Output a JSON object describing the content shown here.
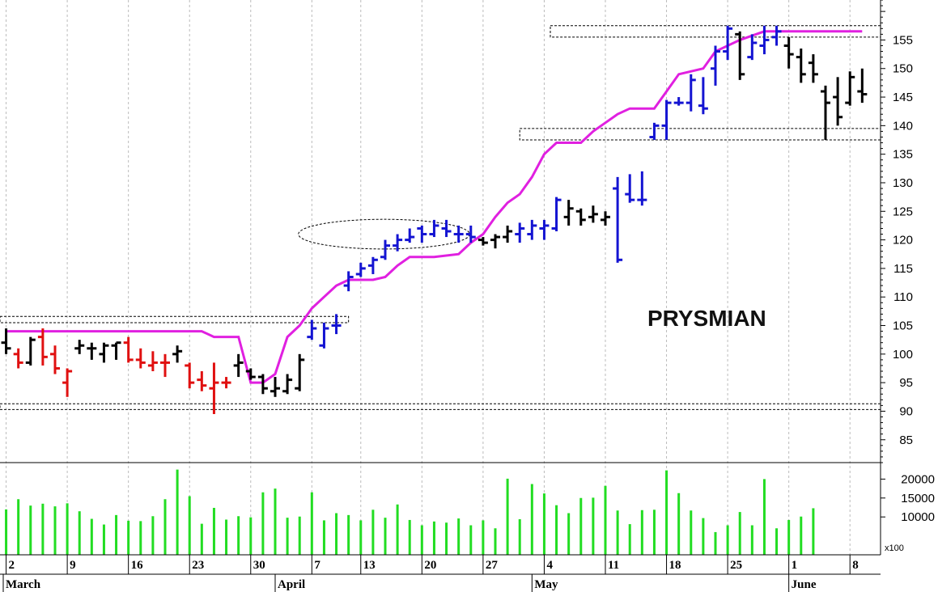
{
  "chart_data": {
    "type": "ohlc",
    "title": "PRYSMIAN",
    "price_axis": {
      "ticks": [
        85,
        90,
        95,
        100,
        105,
        110,
        115,
        120,
        125,
        130,
        135,
        140,
        145,
        150,
        155
      ],
      "ylim": [
        81,
        162
      ]
    },
    "volume_axis": {
      "ticks": [
        10000,
        15000,
        20000
      ],
      "tick_labels": [
        "10000",
        "15000",
        "20000"
      ],
      "unit_label": "x100",
      "ylim": [
        0,
        23500
      ]
    },
    "dates": {
      "day_labels": [
        {
          "text": "2",
          "x": 0
        },
        {
          "text": "9",
          "x": 5
        },
        {
          "text": "16",
          "x": 10
        },
        {
          "text": "23",
          "x": 15
        },
        {
          "text": "30",
          "x": 20
        },
        {
          "text": "7",
          "x": 25
        },
        {
          "text": "13",
          "x": 29
        },
        {
          "text": "20",
          "x": 34
        },
        {
          "text": "27",
          "x": 39
        },
        {
          "text": "4",
          "x": 44
        },
        {
          "text": "11",
          "x": 49
        },
        {
          "text": "18",
          "x": 54
        },
        {
          "text": "25",
          "x": 59
        },
        {
          "text": "1",
          "x": 64
        },
        {
          "text": "8",
          "x": 69
        }
      ],
      "month_labels": [
        {
          "text": "March",
          "x": 0
        },
        {
          "text": "April",
          "x": 22
        },
        {
          "text": "May",
          "x": 43
        },
        {
          "text": "June",
          "x": 64
        }
      ],
      "x_range": [
        -0.5,
        71.5
      ]
    },
    "colors": {
      "red": "#e01010",
      "black": "#000000",
      "blue": "#1414d2",
      "trend": "#e020e0",
      "volume": "#22dd22",
      "grid": "#bbbbbb"
    },
    "bars": [
      {
        "x": 0,
        "o": 102,
        "h": 104.5,
        "l": 100,
        "c": 101,
        "color": "black"
      },
      {
        "x": 1,
        "o": 100,
        "h": 101,
        "l": 97.5,
        "c": 98.5,
        "color": "red"
      },
      {
        "x": 2,
        "o": 98.5,
        "h": 103,
        "l": 98,
        "c": 102.5,
        "color": "black"
      },
      {
        "x": 3,
        "o": 103,
        "h": 104.5,
        "l": 98,
        "c": 99.5,
        "color": "red"
      },
      {
        "x": 4,
        "o": 100,
        "h": 101.5,
        "l": 96.5,
        "c": 97.5,
        "color": "red"
      },
      {
        "x": 5,
        "o": 95,
        "h": 97.5,
        "l": 92.5,
        "c": 97,
        "color": "red"
      },
      {
        "x": 6,
        "o": 101,
        "h": 102.5,
        "l": 100,
        "c": 101.5,
        "color": "black"
      },
      {
        "x": 7,
        "o": 101,
        "h": 102,
        "l": 99,
        "c": 101,
        "color": "black"
      },
      {
        "x": 8,
        "o": 100,
        "h": 102,
        "l": 98.5,
        "c": 101.5,
        "color": "black"
      },
      {
        "x": 9,
        "o": 101.5,
        "h": 102,
        "l": 99,
        "c": 102,
        "color": "black"
      },
      {
        "x": 10,
        "o": 102,
        "h": 103,
        "l": 98.5,
        "c": 99,
        "color": "red"
      },
      {
        "x": 11,
        "o": 99,
        "h": 101,
        "l": 97.5,
        "c": 98.5,
        "color": "red"
      },
      {
        "x": 12,
        "o": 98,
        "h": 100.5,
        "l": 97,
        "c": 98.5,
        "color": "red"
      },
      {
        "x": 13,
        "o": 98.5,
        "h": 100,
        "l": 96,
        "c": 98.5,
        "color": "red"
      },
      {
        "x": 14,
        "o": 100,
        "h": 101.5,
        "l": 98.5,
        "c": 100.5,
        "color": "black"
      },
      {
        "x": 15,
        "o": 98,
        "h": 98.5,
        "l": 94,
        "c": 95,
        "color": "red"
      },
      {
        "x": 16,
        "o": 95.5,
        "h": 97,
        "l": 93.5,
        "c": 94.5,
        "color": "red"
      },
      {
        "x": 17,
        "o": 94,
        "h": 98.5,
        "l": 89.5,
        "c": 95,
        "color": "red"
      },
      {
        "x": 18,
        "o": 95,
        "h": 96,
        "l": 94,
        "c": 95,
        "color": "red"
      },
      {
        "x": 19,
        "o": 98,
        "h": 100,
        "l": 96,
        "c": 98.5,
        "color": "black"
      },
      {
        "x": 20,
        "o": 97,
        "h": 97.5,
        "l": 95.5,
        "c": 96,
        "color": "black"
      },
      {
        "x": 21,
        "o": 96,
        "h": 96.5,
        "l": 93,
        "c": 94,
        "color": "black"
      },
      {
        "x": 22,
        "o": 93.5,
        "h": 96,
        "l": 92.5,
        "c": 94,
        "color": "black"
      },
      {
        "x": 23,
        "o": 93.5,
        "h": 96.5,
        "l": 93,
        "c": 95.5,
        "color": "black"
      },
      {
        "x": 24,
        "o": 94,
        "h": 100,
        "l": 93.5,
        "c": 99,
        "color": "black"
      },
      {
        "x": 25,
        "o": 103,
        "h": 106,
        "l": 102.5,
        "c": 104.5,
        "color": "blue"
      },
      {
        "x": 26,
        "o": 101.5,
        "h": 105.5,
        "l": 101,
        "c": 104.5,
        "color": "blue"
      },
      {
        "x": 27,
        "o": 105,
        "h": 107,
        "l": 103.5,
        "c": 105,
        "color": "blue"
      },
      {
        "x": 28,
        "o": 112,
        "h": 114.5,
        "l": 111,
        "c": 113.5,
        "color": "blue"
      },
      {
        "x": 29,
        "o": 114,
        "h": 116,
        "l": 113.5,
        "c": 115,
        "color": "blue"
      },
      {
        "x": 30,
        "o": 115.5,
        "h": 117,
        "l": 114,
        "c": 116.5,
        "color": "blue"
      },
      {
        "x": 31,
        "o": 117,
        "h": 120,
        "l": 116.5,
        "c": 119,
        "color": "blue"
      },
      {
        "x": 32,
        "o": 119,
        "h": 121,
        "l": 118,
        "c": 120,
        "color": "blue"
      },
      {
        "x": 33,
        "o": 120,
        "h": 122,
        "l": 119.5,
        "c": 120.5,
        "color": "blue"
      },
      {
        "x": 34,
        "o": 122,
        "h": 122.5,
        "l": 119.5,
        "c": 121,
        "color": "blue"
      },
      {
        "x": 35,
        "o": 121,
        "h": 123.5,
        "l": 120.5,
        "c": 122.5,
        "color": "blue"
      },
      {
        "x": 36,
        "o": 122,
        "h": 123.5,
        "l": 120.5,
        "c": 121.5,
        "color": "blue"
      },
      {
        "x": 37,
        "o": 121,
        "h": 122.5,
        "l": 119.5,
        "c": 121,
        "color": "blue"
      },
      {
        "x": 38,
        "o": 121,
        "h": 122.5,
        "l": 119.5,
        "c": 120.5,
        "color": "blue"
      },
      {
        "x": 39,
        "o": 120,
        "h": 120.5,
        "l": 119,
        "c": 119.5,
        "color": "black"
      },
      {
        "x": 40,
        "o": 120,
        "h": 121,
        "l": 118.5,
        "c": 120.5,
        "color": "black"
      },
      {
        "x": 41,
        "o": 120.5,
        "h": 122.5,
        "l": 119.5,
        "c": 121.5,
        "color": "black"
      },
      {
        "x": 42,
        "o": 121,
        "h": 123,
        "l": 119.5,
        "c": 122,
        "color": "blue"
      },
      {
        "x": 43,
        "o": 121,
        "h": 123.5,
        "l": 120,
        "c": 122.5,
        "color": "blue"
      },
      {
        "x": 44,
        "o": 122,
        "h": 123.5,
        "l": 120,
        "c": 122.5,
        "color": "blue"
      },
      {
        "x": 45,
        "o": 122,
        "h": 127.5,
        "l": 121.5,
        "c": 127,
        "color": "blue"
      },
      {
        "x": 46,
        "o": 124,
        "h": 127,
        "l": 122.5,
        "c": 125.5,
        "color": "black"
      },
      {
        "x": 47,
        "o": 125,
        "h": 125.5,
        "l": 122.5,
        "c": 123.5,
        "color": "black"
      },
      {
        "x": 48,
        "o": 124,
        "h": 126,
        "l": 123,
        "c": 124.5,
        "color": "black"
      },
      {
        "x": 49,
        "o": 123.5,
        "h": 125,
        "l": 122.5,
        "c": 124,
        "color": "black"
      },
      {
        "x": 50,
        "o": 129,
        "h": 131,
        "l": 116,
        "c": 116.5,
        "color": "blue"
      },
      {
        "x": 51,
        "o": 128,
        "h": 131.5,
        "l": 126.5,
        "c": 127,
        "color": "blue"
      },
      {
        "x": 52,
        "o": 127,
        "h": 132,
        "l": 126,
        "c": 127,
        "color": "blue"
      },
      {
        "x": 53,
        "o": 138,
        "h": 140.5,
        "l": 137.5,
        "c": 140,
        "color": "blue"
      },
      {
        "x": 54,
        "o": 140,
        "h": 144.5,
        "l": 137.5,
        "c": 144,
        "color": "blue"
      },
      {
        "x": 55,
        "o": 144,
        "h": 145,
        "l": 143.5,
        "c": 144,
        "color": "blue"
      },
      {
        "x": 56,
        "o": 144,
        "h": 149,
        "l": 142.5,
        "c": 148,
        "color": "blue"
      },
      {
        "x": 57,
        "o": 143.5,
        "h": 148.5,
        "l": 142,
        "c": 143,
        "color": "blue"
      },
      {
        "x": 58,
        "o": 150,
        "h": 154,
        "l": 147,
        "c": 153,
        "color": "blue"
      },
      {
        "x": 59,
        "o": 153,
        "h": 157.5,
        "l": 151.5,
        "c": 157,
        "color": "blue"
      },
      {
        "x": 60,
        "o": 156,
        "h": 156.5,
        "l": 148,
        "c": 149,
        "color": "black"
      },
      {
        "x": 61,
        "o": 152,
        "h": 156,
        "l": 151.5,
        "c": 154.5,
        "color": "blue"
      },
      {
        "x": 62,
        "o": 154,
        "h": 157.5,
        "l": 152.5,
        "c": 155,
        "color": "blue"
      },
      {
        "x": 63,
        "o": 155.5,
        "h": 157.5,
        "l": 154,
        "c": 156.5,
        "color": "blue"
      },
      {
        "x": 64,
        "o": 154,
        "h": 155.5,
        "l": 150,
        "c": 152.5,
        "color": "black"
      },
      {
        "x": 65,
        "o": 152,
        "h": 153.5,
        "l": 147.5,
        "c": 149,
        "color": "black"
      },
      {
        "x": 66,
        "o": 151,
        "h": 152.5,
        "l": 147.5,
        "c": 149,
        "color": "black"
      },
      {
        "x": 67,
        "o": 146,
        "h": 147,
        "l": 137.5,
        "c": 144,
        "color": "black"
      },
      {
        "x": 68,
        "o": 145,
        "h": 148.5,
        "l": 140,
        "c": 141.5,
        "color": "black"
      },
      {
        "x": 69,
        "o": 144,
        "h": 149.5,
        "l": 143.5,
        "c": 148.5,
        "color": "black"
      },
      {
        "x": 70,
        "o": 146,
        "h": 150,
        "l": 144,
        "c": 145.5,
        "color": "black"
      }
    ],
    "trend_line": [
      [
        0,
        104
      ],
      [
        16,
        104
      ],
      [
        17,
        103
      ],
      [
        19,
        103
      ],
      [
        20,
        95
      ],
      [
        21,
        95
      ],
      [
        22,
        96.5
      ],
      [
        23,
        103
      ],
      [
        24,
        105
      ],
      [
        25,
        108
      ],
      [
        26,
        110
      ],
      [
        27,
        112
      ],
      [
        28,
        113
      ],
      [
        30,
        113
      ],
      [
        31,
        113.5
      ],
      [
        32,
        115.5
      ],
      [
        33,
        117
      ],
      [
        35,
        117
      ],
      [
        37,
        117.5
      ],
      [
        38,
        119.5
      ],
      [
        39,
        121
      ],
      [
        40,
        124
      ],
      [
        41,
        126.5
      ],
      [
        42,
        128
      ],
      [
        43,
        131
      ],
      [
        44,
        135
      ],
      [
        45,
        137
      ],
      [
        47,
        137
      ],
      [
        48,
        139
      ],
      [
        49,
        140.5
      ],
      [
        50,
        142
      ],
      [
        51,
        143
      ],
      [
        53,
        143
      ],
      [
        54,
        146
      ],
      [
        55,
        149
      ],
      [
        57,
        150
      ],
      [
        58,
        153
      ],
      [
        60,
        155
      ],
      [
        62,
        156.5
      ],
      [
        70,
        156.5
      ]
    ],
    "volume": [
      {
        "x": 0,
        "v": 12000
      },
      {
        "x": 1,
        "v": 14700
      },
      {
        "x": 2,
        "v": 13000
      },
      {
        "x": 3,
        "v": 13500
      },
      {
        "x": 4,
        "v": 12800
      },
      {
        "x": 5,
        "v": 13600
      },
      {
        "x": 6,
        "v": 11500
      },
      {
        "x": 7,
        "v": 9500
      },
      {
        "x": 8,
        "v": 8000
      },
      {
        "x": 9,
        "v": 10500
      },
      {
        "x": 10,
        "v": 9000
      },
      {
        "x": 11,
        "v": 8900
      },
      {
        "x": 12,
        "v": 10200
      },
      {
        "x": 13,
        "v": 14700
      },
      {
        "x": 14,
        "v": 22500
      },
      {
        "x": 15,
        "v": 15500
      },
      {
        "x": 16,
        "v": 8200
      },
      {
        "x": 17,
        "v": 12400
      },
      {
        "x": 18,
        "v": 9300
      },
      {
        "x": 19,
        "v": 10200
      },
      {
        "x": 20,
        "v": 9900
      },
      {
        "x": 21,
        "v": 16500
      },
      {
        "x": 22,
        "v": 17500
      },
      {
        "x": 23,
        "v": 9800
      },
      {
        "x": 24,
        "v": 10100
      },
      {
        "x": 25,
        "v": 16500
      },
      {
        "x": 26,
        "v": 9100
      },
      {
        "x": 27,
        "v": 11000
      },
      {
        "x": 28,
        "v": 10500
      },
      {
        "x": 29,
        "v": 9100
      },
      {
        "x": 30,
        "v": 11900
      },
      {
        "x": 31,
        "v": 9800
      },
      {
        "x": 32,
        "v": 13300
      },
      {
        "x": 33,
        "v": 9200
      },
      {
        "x": 34,
        "v": 7800
      },
      {
        "x": 35,
        "v": 8800
      },
      {
        "x": 36,
        "v": 8500
      },
      {
        "x": 37,
        "v": 9600
      },
      {
        "x": 38,
        "v": 7800
      },
      {
        "x": 39,
        "v": 9100
      },
      {
        "x": 40,
        "v": 7000
      },
      {
        "x": 41,
        "v": 20100
      },
      {
        "x": 42,
        "v": 9400
      },
      {
        "x": 43,
        "v": 18700
      },
      {
        "x": 44,
        "v": 16200
      },
      {
        "x": 45,
        "v": 13100
      },
      {
        "x": 46,
        "v": 11000
      },
      {
        "x": 47,
        "v": 15000
      },
      {
        "x": 48,
        "v": 15100
      },
      {
        "x": 49,
        "v": 18200
      },
      {
        "x": 50,
        "v": 11700
      },
      {
        "x": 51,
        "v": 8100
      },
      {
        "x": 52,
        "v": 11800
      },
      {
        "x": 53,
        "v": 11900
      },
      {
        "x": 54,
        "v": 22300
      },
      {
        "x": 55,
        "v": 16300
      },
      {
        "x": 56,
        "v": 11700
      },
      {
        "x": 57,
        "v": 9700
      },
      {
        "x": 58,
        "v": 6000
      },
      {
        "x": 59,
        "v": 7800
      },
      {
        "x": 60,
        "v": 11300
      },
      {
        "x": 61,
        "v": 7800
      },
      {
        "x": 62,
        "v": 20000
      },
      {
        "x": 63,
        "v": 7000
      },
      {
        "x": 64,
        "v": 9200
      },
      {
        "x": 65,
        "v": 10100
      },
      {
        "x": 66,
        "v": 12300
      }
    ],
    "support_resistance_bands": [
      {
        "y1": 105.5,
        "y2": 106.6,
        "x1": -0.5,
        "x2": 28
      },
      {
        "y1": 90.3,
        "y2": 91.3,
        "x1": -0.5,
        "x2": 71.5
      },
      {
        "y1": 155.5,
        "y2": 157.5,
        "x1": 44.5,
        "x2": 71.5
      },
      {
        "y1": 137.5,
        "y2": 139.5,
        "x1": 42,
        "x2": 71.5
      }
    ],
    "annotation_ellipse": {
      "cx": 30.9,
      "cy": 121,
      "rx": 7,
      "ry": 2.6
    }
  }
}
